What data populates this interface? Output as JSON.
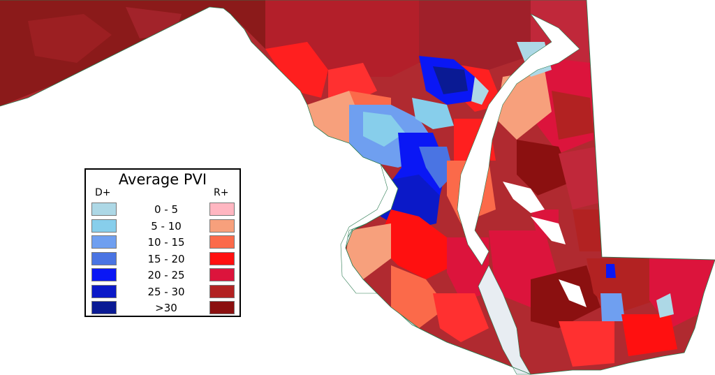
{
  "legend": {
    "title": "Average PVI",
    "dem_label": "D+",
    "rep_label": "R+",
    "bins": [
      "0 - 5",
      "5 - 10",
      "10 - 15",
      "15 - 20",
      "20 - 25",
      "25 - 30",
      ">30"
    ],
    "dem_colors": [
      "#add8e6",
      "#87ceeb",
      "#6f9ff0",
      "#4a74e3",
      "#0a17f5",
      "#0b19c8",
      "#0a1a94"
    ],
    "rep_colors": [
      "#ffb6c1",
      "#f7a07c",
      "#fb6a4a",
      "#ff1010",
      "#dc143c",
      "#b22222",
      "#8b1010"
    ]
  },
  "map": {
    "land_outline_color": "#e8edf2",
    "border_color": "#2a7a50"
  }
}
